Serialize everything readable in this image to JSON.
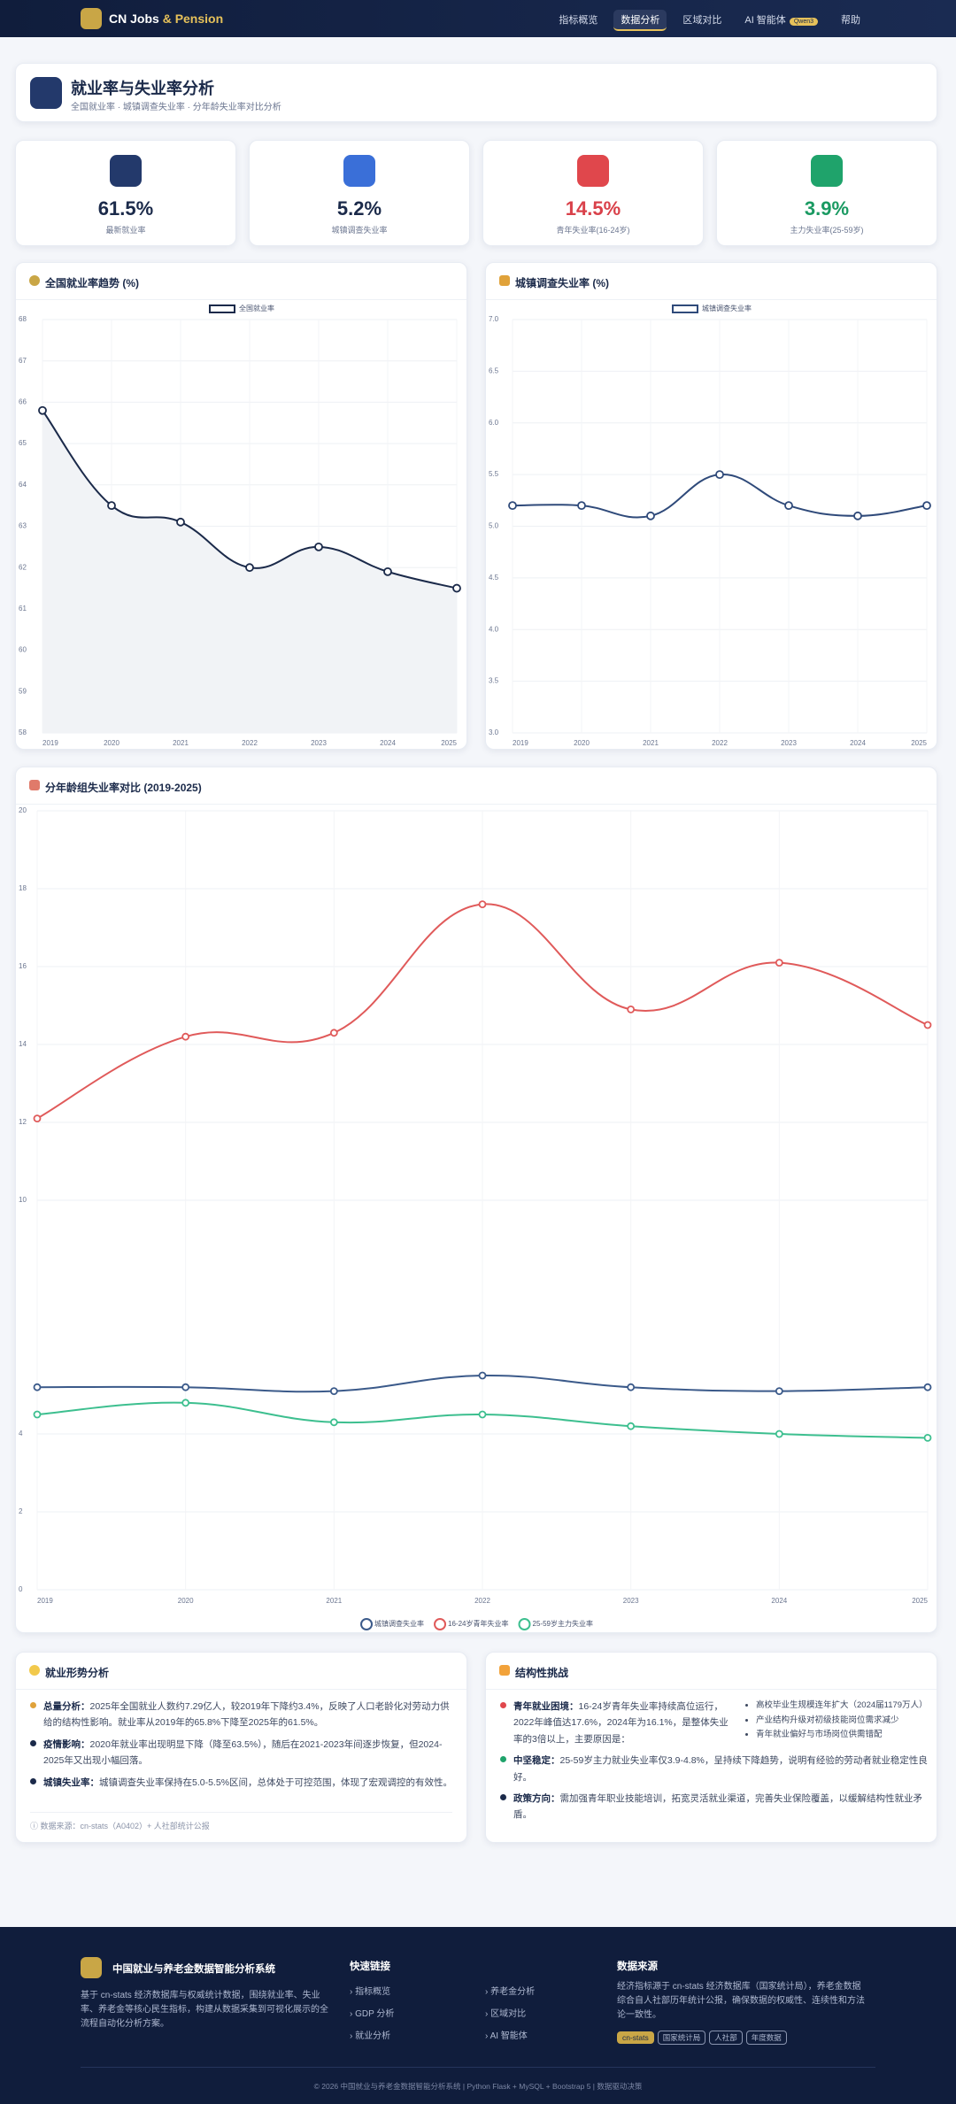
{
  "nav": {
    "brand_prefix": "CN Jobs",
    "brand_suffix": "& Pension",
    "items": [
      "指标概览",
      "数据分析",
      "区域对比",
      "AI 智能体",
      "帮助"
    ],
    "badge": "Qwen3"
  },
  "header": {
    "title": "就业率与失业率分析",
    "subtitle": "全国就业率 · 城镇调查失业率 · 分年龄失业率对比分析"
  },
  "stats": [
    {
      "value": "61.5%",
      "label": "最新就业率"
    },
    {
      "value": "5.2%",
      "label": "城镇调查失业率"
    },
    {
      "value": "14.5%",
      "label": "青年失业率(16-24岁)"
    },
    {
      "value": "3.9%",
      "label": "主力失业率(25-59岁)"
    }
  ],
  "chart_data": [
    {
      "type": "line",
      "title": "全国就业率趋势 (%)",
      "categories": [
        "2019",
        "2020",
        "2021",
        "2022",
        "2023",
        "2024",
        "2025"
      ],
      "series": [
        {
          "name": "全国就业率",
          "color": "#1b2a4a",
          "area": true,
          "values": [
            65.8,
            63.5,
            63.1,
            62.0,
            62.5,
            61.9,
            61.5
          ]
        }
      ],
      "ylim": [
        58,
        68
      ],
      "yticks": [
        58,
        59,
        60,
        61,
        62,
        63,
        64,
        65,
        66,
        67,
        68
      ],
      "grid": true,
      "legend": "top"
    },
    {
      "type": "line",
      "title": "城镇调查失业率 (%)",
      "categories": [
        "2019",
        "2020",
        "2021",
        "2022",
        "2023",
        "2024",
        "2025"
      ],
      "series": [
        {
          "name": "城镇调查失业率",
          "color": "#2f4a7a",
          "area": false,
          "values": [
            5.2,
            5.2,
            5.1,
            5.5,
            5.2,
            5.1,
            5.2
          ]
        }
      ],
      "ylim": [
        3,
        7
      ],
      "yticks": [
        {
          "value": 3,
          "label": "3.0"
        },
        {
          "value": 3.5,
          "label": "3.5"
        },
        {
          "value": 4,
          "label": "4.0"
        },
        {
          "value": 4.5,
          "label": "4.5"
        },
        {
          "value": 5,
          "label": "5.0"
        },
        {
          "value": 5.5,
          "label": "5.5"
        },
        {
          "value": 6,
          "label": "6.0"
        },
        {
          "value": 6.5,
          "label": "6.5"
        },
        {
          "value": 7,
          "label": "7.0"
        }
      ],
      "grid": true,
      "legend": "top"
    },
    {
      "type": "line",
      "title": "分年龄组失业率对比 (2019-2025)",
      "categories": [
        "2019",
        "2020",
        "2021",
        "2022",
        "2023",
        "2024",
        "2025"
      ],
      "series": [
        {
          "name": "城镇调查失业率",
          "color": "#3b5a8a",
          "area": false,
          "values": [
            5.2,
            5.2,
            5.1,
            5.5,
            5.2,
            5.1,
            5.2
          ]
        },
        {
          "name": "16-24岁青年失业率",
          "color": "#e05a5a",
          "area": false,
          "values": [
            12.1,
            14.2,
            14.3,
            17.6,
            14.9,
            16.1,
            14.5
          ]
        },
        {
          "name": "25-59岁主力失业率",
          "color": "#3dbf8f",
          "area": false,
          "values": [
            4.5,
            4.8,
            4.3,
            4.5,
            4.2,
            4.0,
            3.9
          ]
        }
      ],
      "ylim": [
        0,
        20
      ],
      "yticks": [
        0,
        2,
        4,
        10,
        12,
        14,
        16,
        18,
        20
      ],
      "grid": true,
      "legend": "bottom"
    }
  ],
  "analysis": [
    {
      "title": "就业形势分析",
      "items": [
        {
          "label": "总量分析：",
          "text": "2025年全国就业人数约7.29亿人，较2019年下降约3.4%，反映了人口老龄化对劳动力供给的结构性影响。就业率从2019年的65.8%下降至2025年的61.5%。"
        },
        {
          "label": "疫情影响：",
          "text": "2020年就业率出现明显下降（降至63.5%），随后在2021-2023年间逐步恢复，但2024-2025年又出现小幅回落。"
        },
        {
          "label": "城镇失业率：",
          "text": "城镇调查失业率保持在5.0-5.5%区间，总体处于可控范围，体现了宏观调控的有效性。"
        }
      ],
      "source": "数据来源：cn-stats（A0402）+ 人社部统计公报"
    },
    {
      "title": "结构性挑战",
      "items": [
        {
          "label": "青年就业困境：",
          "text": "16-24岁青年失业率持续高位运行，2022年峰值达17.6%，2024年为16.1%，是整体失业率的3倍以上，主要原因是：",
          "bullets": [
            "高校毕业生规模连年扩大（2024届1179万人）",
            "产业结构升级对初级技能岗位需求减少",
            "青年就业偏好与市场岗位供需错配"
          ]
        },
        {
          "label": "中坚稳定：",
          "text": "25-59岁主力就业失业率仅3.9-4.8%，呈持续下降趋势，说明有经验的劳动者就业稳定性良好。"
        },
        {
          "label": "政策方向：",
          "text": "需加强青年职业技能培训，拓宽灵活就业渠道，完善失业保险覆盖，以缓解结构性就业矛盾。"
        }
      ]
    }
  ],
  "footer": {
    "brand": "中国就业与养老金数据智能分析系统",
    "desc": "基于 cn-stats 经济数据库与权威统计数据，围绕就业率、失业率、养老金等核心民生指标，构建从数据采集到可视化展示的全流程自动化分析方案。",
    "links_title": "快速链接",
    "links": [
      "指标概览",
      "养老金分析",
      "GDP 分析",
      "区域对比",
      "就业分析",
      "AI 智能体"
    ],
    "source_title": "数据来源",
    "source_text": "经济指标源于 cn-stats 经济数据库（国家统计局），养老金数据综合自人社部历年统计公报，确保数据的权威性、连续性和方法论一致性。",
    "tags": [
      "cn-stats",
      "国家统计局",
      "人社部",
      "年度数据"
    ],
    "copyright": "© 2026 中国就业与养老金数据智能分析系统 | Python Flask + MySQL + Bootstrap 5 | 数据驱动决策"
  }
}
